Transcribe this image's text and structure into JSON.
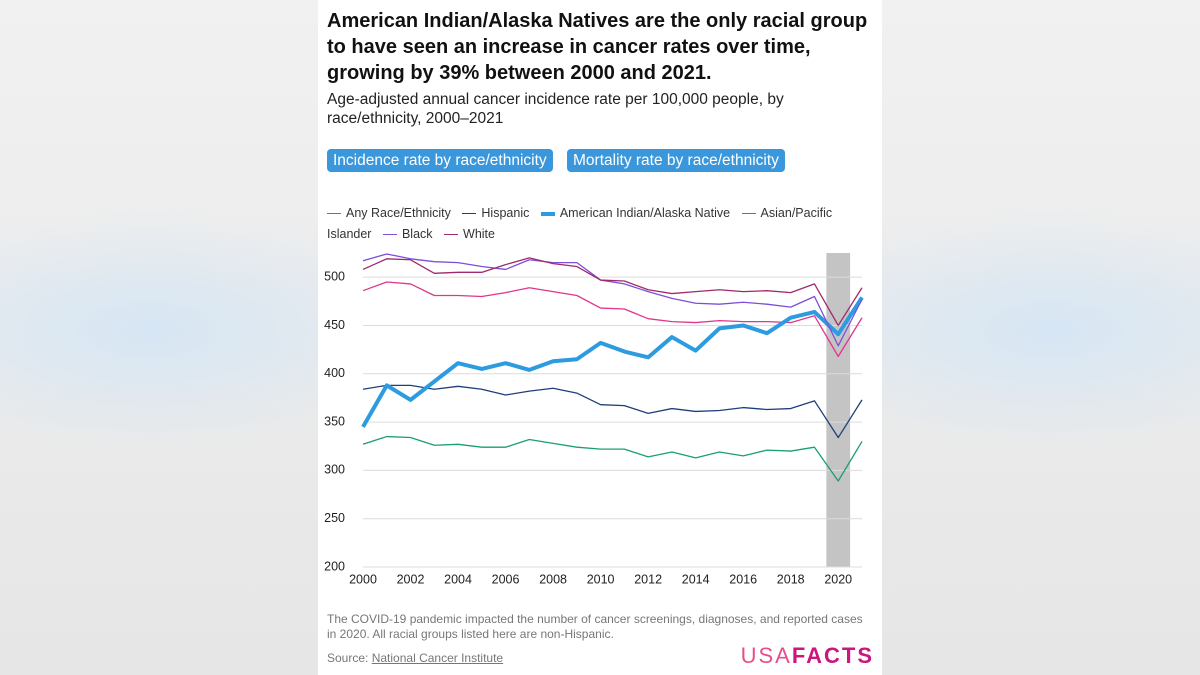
{
  "chart_data": {
    "type": "line",
    "title": "American Indian/Alaska Natives are the only racial group to have seen an increase in cancer rates over time, growing by 39% between 2000 and 2021.",
    "subtitle": "Age-adjusted annual cancer incidence rate per 100,000 people, by race/ethnicity, 2000–2021",
    "x": [
      2000,
      2001,
      2002,
      2003,
      2004,
      2005,
      2006,
      2007,
      2008,
      2009,
      2010,
      2011,
      2012,
      2013,
      2014,
      2015,
      2016,
      2017,
      2018,
      2019,
      2020,
      2021
    ],
    "series": [
      {
        "name": "Any Race/Ethnicity",
        "color": "#e0368c",
        "width": 1.3,
        "values": [
          486,
          495,
          493,
          481,
          481,
          480,
          484,
          489,
          485,
          481,
          468,
          467,
          457,
          454,
          453,
          455,
          454,
          454,
          453,
          460,
          418,
          458
        ]
      },
      {
        "name": "Hispanic",
        "color": "#1f3f7a",
        "width": 1.3,
        "values": [
          384,
          388,
          388,
          384,
          387,
          384,
          378,
          382,
          385,
          380,
          368,
          367,
          359,
          364,
          361,
          362,
          365,
          363,
          364,
          372,
          334,
          373
        ]
      },
      {
        "name": "American Indian/Alaska Native",
        "color": "#2d9be0",
        "width": 4,
        "values": [
          345,
          388,
          373,
          392,
          411,
          405,
          411,
          404,
          413,
          415,
          432,
          423,
          417,
          438,
          424,
          447,
          450,
          442,
          458,
          464,
          441,
          479
        ]
      },
      {
        "name": "Asian/Pacific Islander",
        "color": "#1a9e77",
        "width": 1.3,
        "values": [
          327,
          335,
          334,
          326,
          327,
          324,
          324,
          332,
          328,
          324,
          322,
          322,
          314,
          319,
          313,
          319,
          315,
          321,
          320,
          324,
          289,
          330
        ]
      },
      {
        "name": "Black",
        "color": "#7b4fd8",
        "width": 1.3,
        "values": [
          517,
          524,
          519,
          516,
          515,
          511,
          508,
          518,
          515,
          515,
          497,
          493,
          485,
          478,
          473,
          472,
          474,
          472,
          469,
          480,
          429,
          477
        ]
      },
      {
        "name": "White",
        "color": "#9e2a6b",
        "width": 1.3,
        "values": [
          508,
          519,
          518,
          504,
          505,
          505,
          513,
          520,
          514,
          511,
          497,
          496,
          487,
          483,
          485,
          487,
          485,
          486,
          484,
          493,
          450,
          489
        ]
      }
    ],
    "highlight_x": 2020,
    "xlim": [
      2000,
      2021
    ],
    "xticks": [
      2000,
      2002,
      2004,
      2006,
      2008,
      2010,
      2012,
      2014,
      2016,
      2018,
      2020
    ],
    "ylim": [
      200,
      525
    ],
    "yticks": [
      200,
      250,
      300,
      350,
      400,
      450,
      500
    ],
    "grid": true
  },
  "buttons": [
    "Incidence rate by race/ethnicity",
    "Mortality rate by race/ethnicity"
  ],
  "note": "The COVID-19 pandemic impacted the number of cancer screenings, diagnoses, and reported cases in 2020. All racial groups listed here are non-Hispanic.",
  "source_label": "Source:",
  "source_link": "National Cancer Institute",
  "logo": [
    "USA",
    "FACTS"
  ]
}
